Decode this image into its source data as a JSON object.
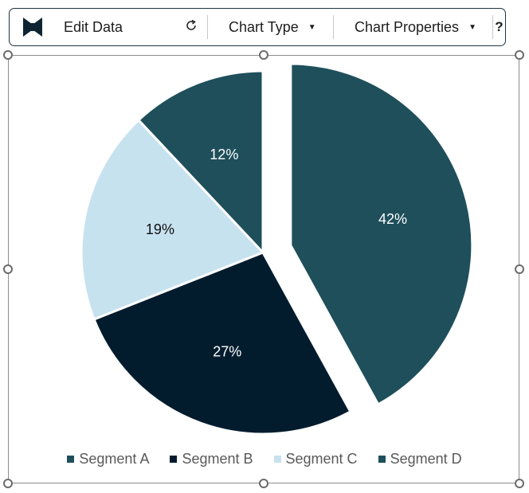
{
  "toolbar": {
    "edit_label": "Edit Data",
    "refresh_icon": "refresh-icon",
    "chart_type_label": "Chart Type",
    "chart_properties_label": "Chart Properties",
    "help_label": "?",
    "logo_icon": "bowtie-logo-icon"
  },
  "colors": {
    "segment_a": "#1e4f5a",
    "segment_b": "#021c2e",
    "segment_c": "#c7e2ef",
    "segment_d": "#1e4f5a"
  },
  "chart_data": {
    "type": "pie",
    "categories": [
      "Segment A",
      "Segment B",
      "Segment C",
      "Segment D"
    ],
    "values": [
      42,
      27,
      19,
      12
    ],
    "data_labels": [
      "42%",
      "27%",
      "19%",
      "12%"
    ],
    "legend_position": "bottom",
    "exploded": [
      "Segment A"
    ],
    "colors": [
      "#1e4f5a",
      "#021c2e",
      "#c7e2ef",
      "#1e4f5a"
    ]
  }
}
